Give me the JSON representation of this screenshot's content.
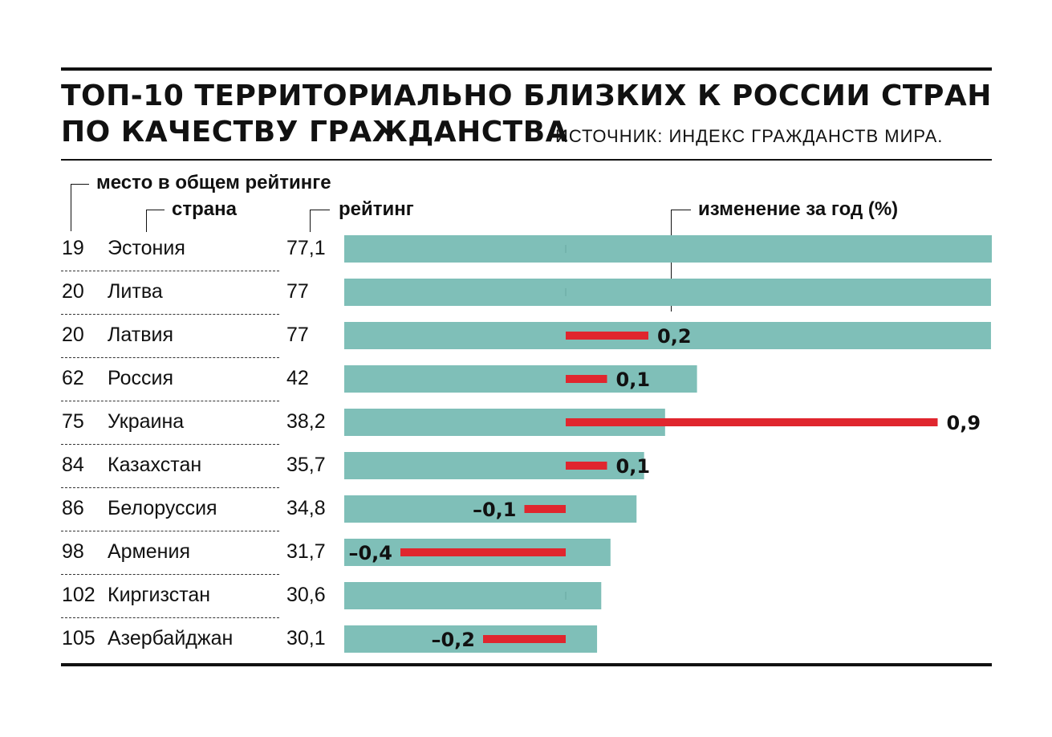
{
  "title": {
    "line1": "ТОП-10 ТЕРРИТОРИАЛЬНО БЛИЗКИХ К РОССИИ СТРАН",
    "line2": "ПО КАЧЕСТВУ ГРАЖДАНСТВА",
    "source": "ИСТОЧНИК:  ИНДЕКС ГРАЖДАНСТВ МИРА."
  },
  "headers": {
    "rank": "место в общем рейтинге",
    "country": "страна",
    "rating": "рейтинг",
    "change": "изменение за год (%)"
  },
  "colors": {
    "bar": "#7fbfb8",
    "change": "#e0262e",
    "text": "#111111"
  },
  "chart_data": {
    "type": "bar",
    "categories": [
      "Эстония",
      "Литва",
      "Латвия",
      "Россия",
      "Украина",
      "Казахстан",
      "Белоруссия",
      "Армения",
      "Киргизстан",
      "Азербайджан"
    ],
    "series": [
      {
        "name": "рейтинг",
        "values": [
          77.1,
          77,
          77,
          42,
          38.2,
          35.7,
          34.8,
          31.7,
          30.6,
          30.1
        ]
      },
      {
        "name": "изменение за год (%)",
        "values": [
          0,
          0,
          0.2,
          0.1,
          0.9,
          0.1,
          -0.1,
          -0.4,
          0,
          -0.2
        ]
      }
    ],
    "rows": [
      {
        "rank": "19",
        "country": "Эстония",
        "rating": "77,1",
        "change": ""
      },
      {
        "rank": "20",
        "country": "Литва",
        "rating": "77",
        "change": ""
      },
      {
        "rank": "20",
        "country": "Латвия",
        "rating": "77",
        "change": "0,2"
      },
      {
        "rank": "62",
        "country": "Россия",
        "rating": "42",
        "change": "0,1"
      },
      {
        "rank": "75",
        "country": "Украина",
        "rating": "38,2",
        "change": "0,9"
      },
      {
        "rank": "84",
        "country": "Казахстан",
        "rating": "35,7",
        "change": "0,1"
      },
      {
        "rank": "86",
        "country": "Белоруссия",
        "rating": "34,8",
        "change": "–0,1"
      },
      {
        "rank": "98",
        "country": "Армения",
        "rating": "31,7",
        "change": "–0,4"
      },
      {
        "rank": "102",
        "country": "Киргизстан",
        "rating": "30,6",
        "change": ""
      },
      {
        "rank": "105",
        "country": "Азербайджан",
        "rating": "30,1",
        "change": "–0,2"
      }
    ],
    "rating_range": [
      0,
      77.1
    ],
    "change_range": [
      -0.9,
      0.9
    ]
  }
}
